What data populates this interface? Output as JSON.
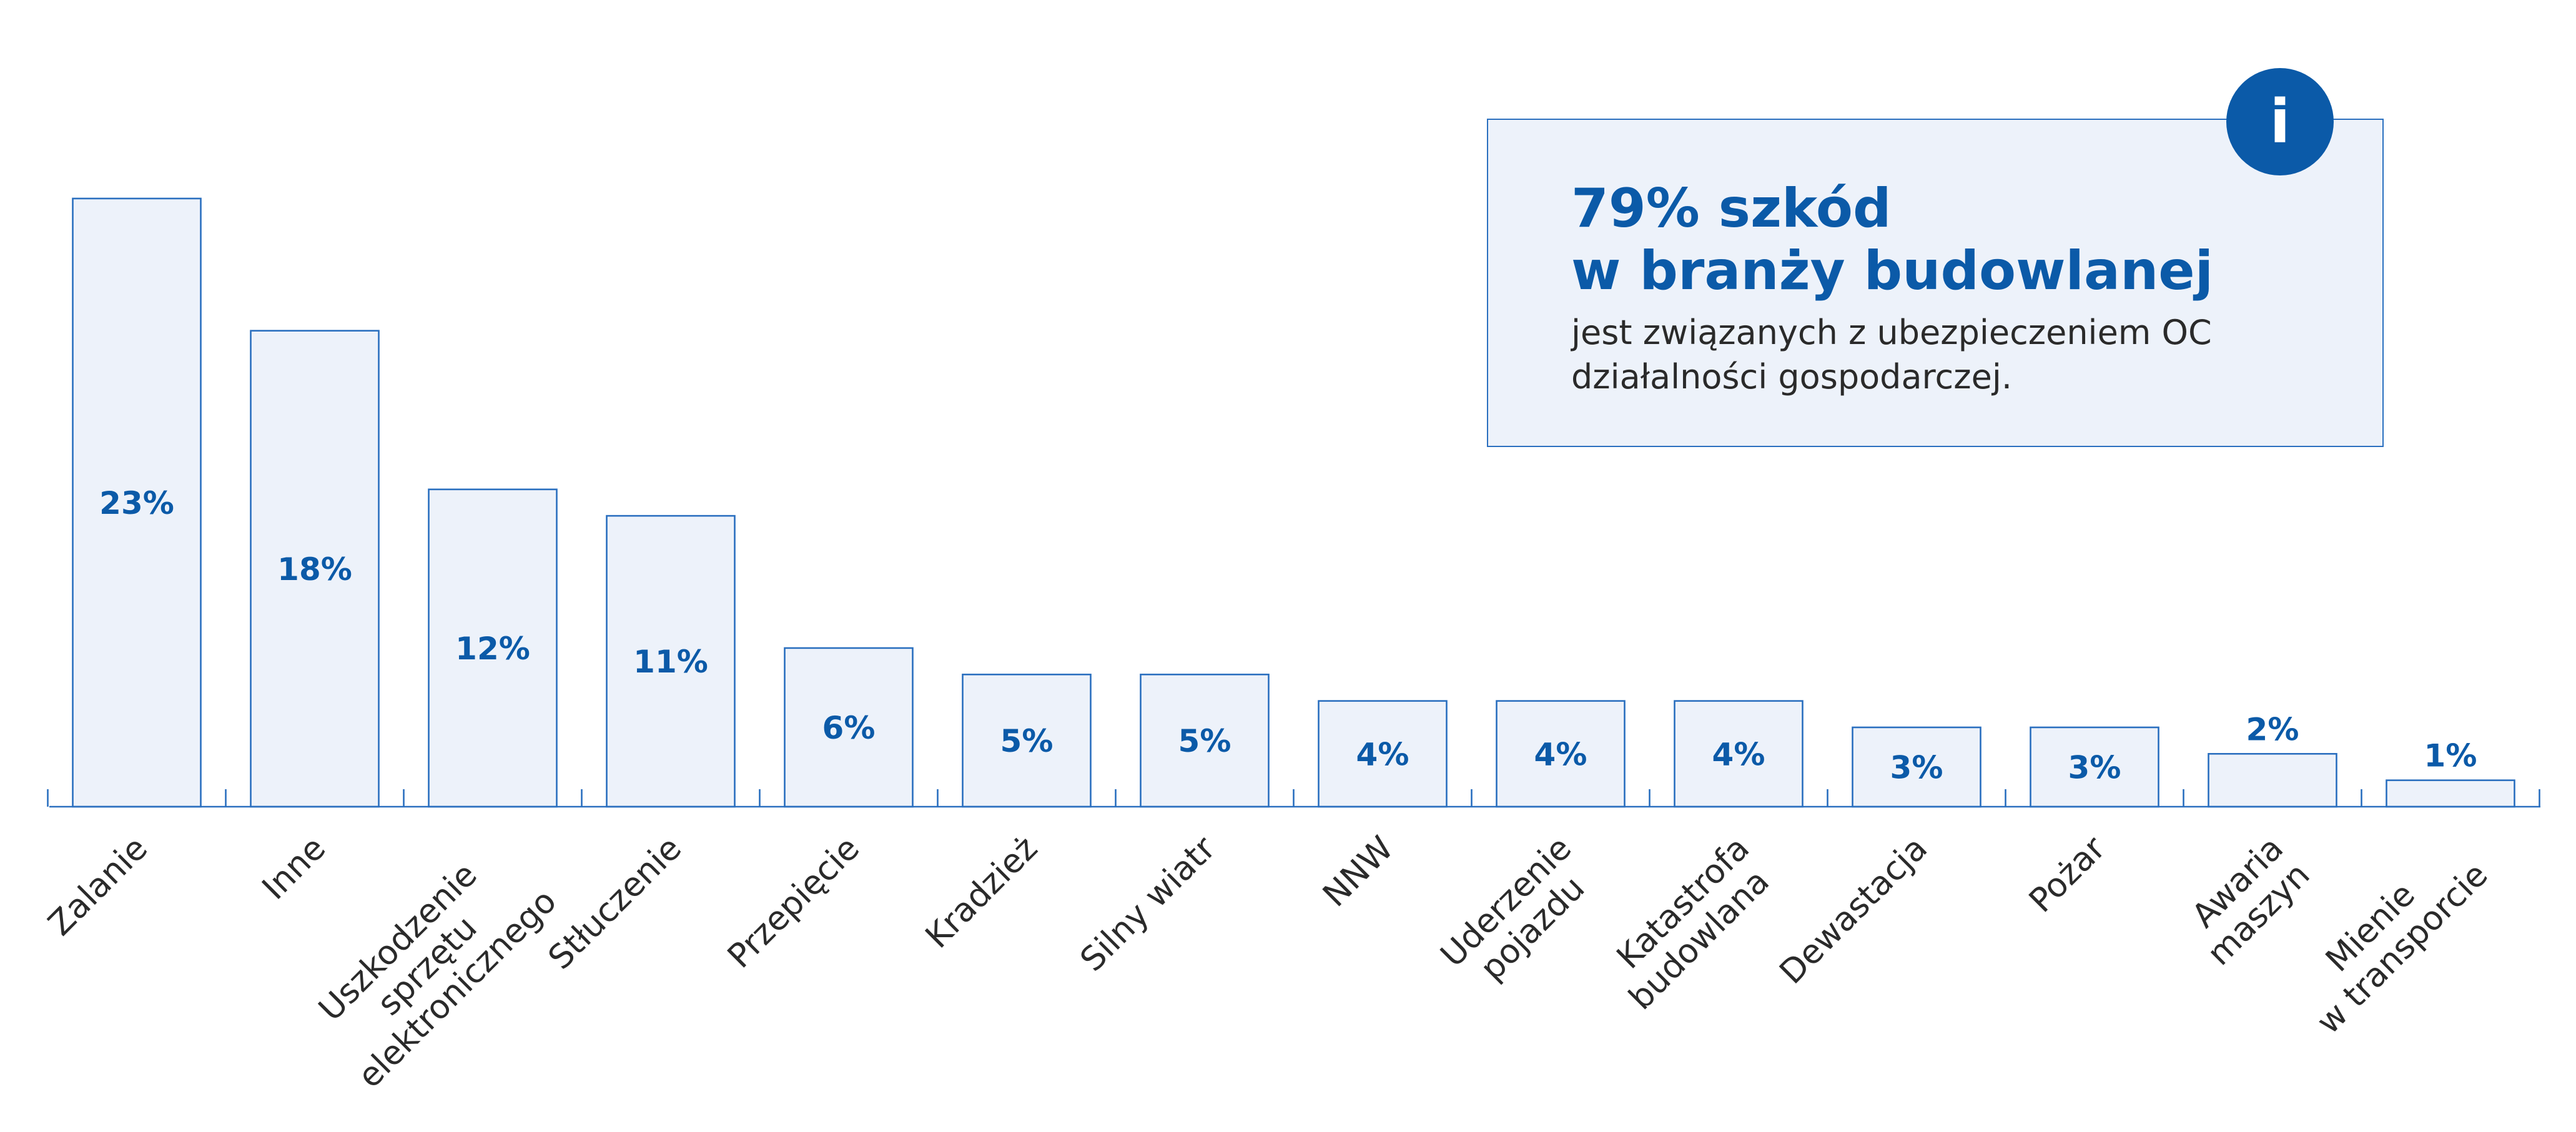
{
  "chart_data": {
    "type": "bar",
    "categories": [
      [
        "Zalanie"
      ],
      [
        "Inne"
      ],
      [
        "Uszkodzenie",
        "sprzętu",
        "elektronicznego"
      ],
      [
        "Stłuczenie"
      ],
      [
        "Przepięcie"
      ],
      [
        "Kradzież"
      ],
      [
        "Silny wiatr"
      ],
      [
        "NNW"
      ],
      [
        "Uderzenie",
        "pojazdu"
      ],
      [
        "Katastrofa",
        "budowlana"
      ],
      [
        "Dewastacja"
      ],
      [
        "Pożar"
      ],
      [
        "Awaria",
        "maszyn"
      ],
      [
        "Mienie",
        "w transporcie"
      ]
    ],
    "values": [
      23,
      18,
      12,
      11,
      6,
      5,
      5,
      4,
      4,
      4,
      3,
      3,
      2,
      1
    ],
    "value_labels": [
      "23%",
      "18%",
      "12%",
      "11%",
      "6%",
      "5%",
      "5%",
      "4%",
      "4%",
      "4%",
      "3%",
      "3%",
      "2%",
      "1%"
    ],
    "unit": "%",
    "ylim": [
      0,
      25
    ],
    "grid": false,
    "legend": "none",
    "bar_fill": "#edf2fa",
    "bar_stroke": "#2a6fbf",
    "label_color": "#0b5aa8"
  },
  "info_box": {
    "icon": "info-icon",
    "icon_glyph": "i",
    "headline_line1": "79% szkód",
    "headline_line2": "w branży budowlanej",
    "text_line1": "jest związanych z ubezpieczeniem OC",
    "text_line2": "działalności gospodarczej."
  }
}
